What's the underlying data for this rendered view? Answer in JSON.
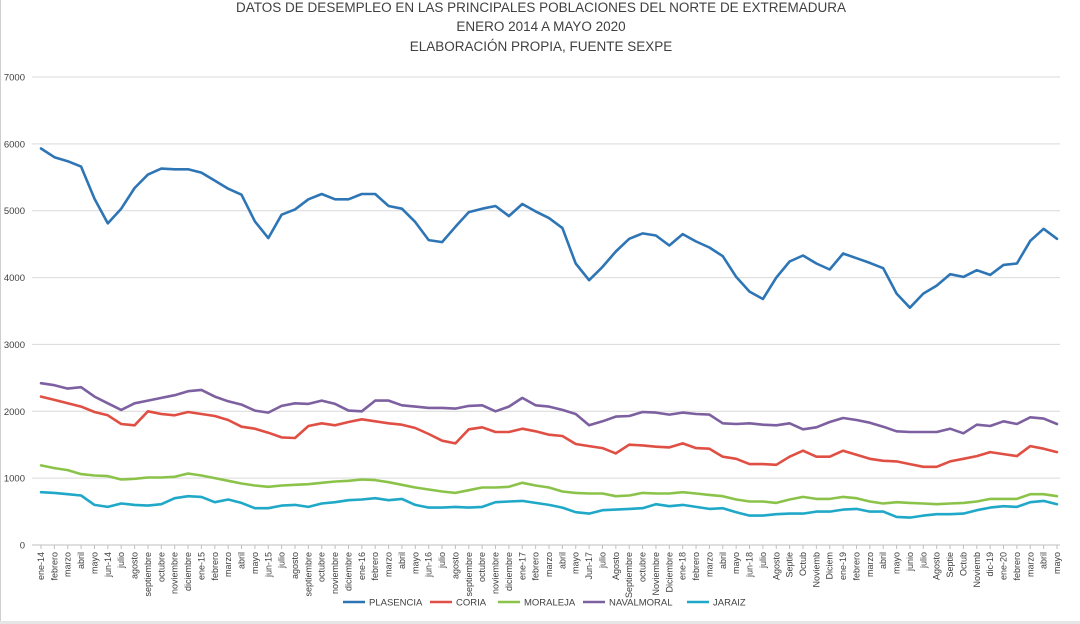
{
  "chart_data": {
    "type": "line",
    "title": "DATOS DE DESEMPLEO EN LAS PRINCIPALES POBLACIONES DEL NORTE DE EXTREMADURA",
    "subtitle": [
      "ENERO 2014 A  MAYO  2020",
      "ELABORACIÓN PROPIA, FUENTE SEXPE"
    ],
    "xlabel": "",
    "ylabel": "",
    "ylim": [
      0,
      7000
    ],
    "yticks": [
      0,
      1000,
      2000,
      3000,
      4000,
      5000,
      6000,
      7000
    ],
    "grid": true,
    "legend_position": "bottom",
    "categories": [
      "ene-14",
      "febrero",
      "marzo",
      "abril",
      "mayo",
      "jun-14",
      "julio",
      "agosto",
      "septiembre",
      "octubre",
      "noviembre",
      "diciembre",
      "ene-15",
      "febrero",
      "marzo",
      "abril",
      "mayo",
      "jun-15",
      "julio",
      "agosto",
      "septiembre",
      "octubre",
      "noviembre",
      "diciembre",
      "ene-16",
      "febrero",
      "marzo",
      "abril",
      "mayo",
      "jun-16",
      "julio",
      "agosto",
      "septiembre",
      "octubre",
      "noviembre",
      "diciembre",
      "ene-17",
      "febrero",
      "marzo",
      "abril",
      "mayo",
      "Jun-17",
      "julio",
      "Agosto",
      "Septiembre",
      "octubre",
      "Noviembre",
      "Diciembre",
      "ene-18",
      "febrero",
      "marzo",
      "abril",
      "mayo",
      "jun-18",
      "julio",
      "Agosto",
      "Septie",
      "Octub",
      "Noviemb",
      "Diciem",
      "ene-19",
      "febrero",
      "marzo",
      "abril",
      "mayo",
      "junio",
      "julio",
      "Agosto",
      "Septie",
      "Octub",
      "Noviemb",
      "dic-19",
      "ene-20",
      "febrero",
      "marzo",
      "abril",
      "mayo"
    ],
    "series": [
      {
        "name": "PLASENCIA",
        "color": "#2e75b6",
        "values": [
          5930,
          5800,
          5740,
          5660,
          5180,
          4810,
          5030,
          5340,
          5540,
          5630,
          5620,
          5620,
          5570,
          5450,
          5330,
          5240,
          4840,
          4590,
          4940,
          5020,
          5170,
          5250,
          5170,
          5170,
          5250,
          5250,
          5070,
          5030,
          4830,
          4560,
          4530,
          4760,
          4980,
          5030,
          5070,
          4920,
          5100,
          4990,
          4890,
          4740,
          4210,
          3960,
          4160,
          4390,
          4580,
          4660,
          4630,
          4480,
          4650,
          4540,
          4450,
          4320,
          4010,
          3790,
          3680,
          4000,
          4240,
          4330,
          4210,
          4120,
          4360,
          4290,
          4220,
          4140,
          3760,
          3550,
          3760,
          3880,
          4050,
          4010,
          4110,
          4040,
          4190,
          4210,
          4550,
          4730,
          4580
        ]
      },
      {
        "name": "CORIA",
        "color": "#e04f44",
        "values": [
          2220,
          2170,
          2120,
          2070,
          1990,
          1940,
          1810,
          1790,
          2000,
          1960,
          1940,
          1990,
          1960,
          1930,
          1870,
          1770,
          1740,
          1680,
          1610,
          1600,
          1780,
          1820,
          1790,
          1840,
          1880,
          1850,
          1820,
          1800,
          1750,
          1660,
          1560,
          1520,
          1730,
          1760,
          1690,
          1690,
          1740,
          1700,
          1650,
          1630,
          1510,
          1480,
          1450,
          1370,
          1500,
          1490,
          1470,
          1460,
          1520,
          1450,
          1440,
          1320,
          1290,
          1210,
          1210,
          1200,
          1320,
          1410,
          1320,
          1320,
          1410,
          1350,
          1290,
          1260,
          1250,
          1210,
          1170,
          1170,
          1250,
          1290,
          1330,
          1390,
          1360,
          1330,
          1480,
          1440,
          1390
        ]
      },
      {
        "name": "MORALEJA",
        "color": "#8bc34a",
        "values": [
          1190,
          1150,
          1120,
          1060,
          1040,
          1030,
          980,
          990,
          1010,
          1010,
          1020,
          1070,
          1040,
          1000,
          960,
          920,
          890,
          870,
          890,
          900,
          910,
          930,
          950,
          960,
          980,
          970,
          940,
          900,
          860,
          830,
          800,
          780,
          820,
          860,
          860,
          870,
          930,
          890,
          860,
          800,
          780,
          770,
          770,
          730,
          740,
          780,
          770,
          770,
          790,
          770,
          750,
          730,
          680,
          650,
          650,
          630,
          680,
          720,
          690,
          690,
          720,
          700,
          650,
          620,
          640,
          630,
          620,
          610,
          620,
          630,
          650,
          690,
          690,
          690,
          760,
          760,
          730
        ]
      },
      {
        "name": "NAVALMORAL",
        "color": "#7d60a0",
        "values": [
          2420,
          2390,
          2340,
          2360,
          2220,
          2120,
          2020,
          2120,
          2160,
          2200,
          2240,
          2300,
          2320,
          2220,
          2150,
          2100,
          2010,
          1980,
          2080,
          2120,
          2110,
          2160,
          2110,
          2010,
          2000,
          2160,
          2160,
          2090,
          2070,
          2050,
          2050,
          2040,
          2080,
          2090,
          2000,
          2070,
          2200,
          2090,
          2070,
          2020,
          1960,
          1790,
          1850,
          1920,
          1930,
          1990,
          1980,
          1950,
          1980,
          1960,
          1950,
          1820,
          1810,
          1820,
          1800,
          1790,
          1820,
          1730,
          1760,
          1840,
          1900,
          1870,
          1830,
          1770,
          1700,
          1690,
          1690,
          1690,
          1740,
          1670,
          1800,
          1780,
          1850,
          1810,
          1910,
          1890,
          1810
        ]
      },
      {
        "name": "JARAIZ",
        "color": "#20a8c8",
        "values": [
          790,
          780,
          760,
          740,
          600,
          570,
          620,
          600,
          590,
          610,
          700,
          730,
          720,
          640,
          680,
          630,
          550,
          550,
          590,
          600,
          570,
          620,
          640,
          670,
          680,
          700,
          670,
          690,
          600,
          560,
          560,
          570,
          560,
          570,
          640,
          650,
          660,
          630,
          600,
          560,
          490,
          470,
          520,
          530,
          540,
          550,
          610,
          580,
          600,
          570,
          540,
          550,
          490,
          440,
          440,
          460,
          470,
          470,
          500,
          500,
          530,
          540,
          500,
          500,
          420,
          410,
          440,
          460,
          460,
          470,
          520,
          560,
          580,
          570,
          640,
          660,
          610
        ]
      }
    ]
  }
}
